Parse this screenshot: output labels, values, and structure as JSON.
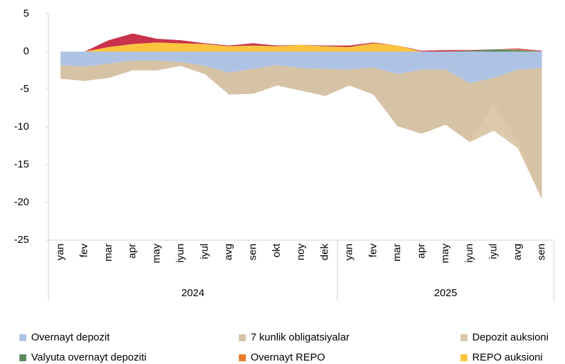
{
  "chart_data": {
    "type": "stacked_area",
    "categories": [
      "yan",
      "fev",
      "mar",
      "apr",
      "may",
      "iyun",
      "iyul",
      "avg",
      "sen",
      "okt",
      "noy",
      "dek",
      "yan",
      "fev",
      "mar",
      "apr",
      "may",
      "iyun",
      "iyul",
      "avg",
      "sen"
    ],
    "groups": [
      {
        "label": "2024",
        "count": 12
      },
      {
        "label": "2025",
        "count": 9
      }
    ],
    "ylim": [
      -25,
      5
    ],
    "yticks": [
      -25,
      -20,
      -15,
      -10,
      -5,
      0,
      5
    ],
    "series": [
      {
        "name": "Overnayt depozit",
        "color": "#aec3e3",
        "values": [
          -1.8,
          -2.0,
          -1.6,
          -1.2,
          -1.2,
          -1.4,
          -1.9,
          -2.8,
          -2.3,
          -1.8,
          -2.2,
          -2.3,
          -2.4,
          -2.1,
          -3.0,
          -2.4,
          -2.4,
          -4.2,
          -3.5,
          -2.4,
          -2.2
        ]
      },
      {
        "name": "7 kunlik obligatsiyalar",
        "color": "#d6c2a5",
        "values": [
          -1.8,
          -1.9,
          -1.9,
          -1.3,
          -1.3,
          -0.5,
          -1.1,
          -2.9,
          -3.3,
          -2.7,
          -3.0,
          -3.6,
          -2.1,
          -3.6,
          -6.9,
          -8.5,
          -7.3,
          -7.8,
          -3.5,
          -9.6,
          -17.4
        ]
      },
      {
        "name": "Depozit auksioni",
        "color": "#dcc8aa",
        "values": [
          0,
          0,
          0,
          0,
          0,
          0,
          0,
          0,
          0,
          0,
          0,
          0,
          0,
          0,
          0,
          0,
          0,
          0,
          -3.5,
          -0.8,
          0
        ]
      },
      {
        "name": "Valyuta overnayt depoziti",
        "color": "#5e8c5e",
        "values": [
          0,
          0,
          0,
          0,
          0,
          0,
          0,
          0,
          0,
          0,
          0,
          0,
          0,
          0,
          0,
          0,
          0,
          0.1,
          0.3,
          0.2,
          0
        ]
      },
      {
        "name": "Overnayt REPO",
        "color": "#e87d2c",
        "values": [
          0,
          0,
          0,
          0,
          0,
          0,
          0,
          0,
          0,
          0,
          0,
          0,
          0,
          0,
          0,
          0,
          0,
          0,
          0,
          0.1,
          0
        ]
      },
      {
        "name": "REPO auksioni",
        "color": "#fcc43e",
        "values": [
          0,
          0,
          0.6,
          1.0,
          1.2,
          1.1,
          1.0,
          0.7,
          0.8,
          0.7,
          0.9,
          0.7,
          0.6,
          1.1,
          0.8,
          0,
          0,
          0,
          0,
          0,
          0
        ]
      },
      {
        "color": "#c8324a",
        "values": [
          0,
          0,
          0.9,
          1.4,
          0.5,
          0.4,
          0.1,
          0.1,
          0.3,
          0.1,
          0,
          0.1,
          0.2,
          0.1,
          0,
          0.1,
          0.2,
          0.1,
          0,
          0.1,
          0.1
        ]
      }
    ]
  }
}
